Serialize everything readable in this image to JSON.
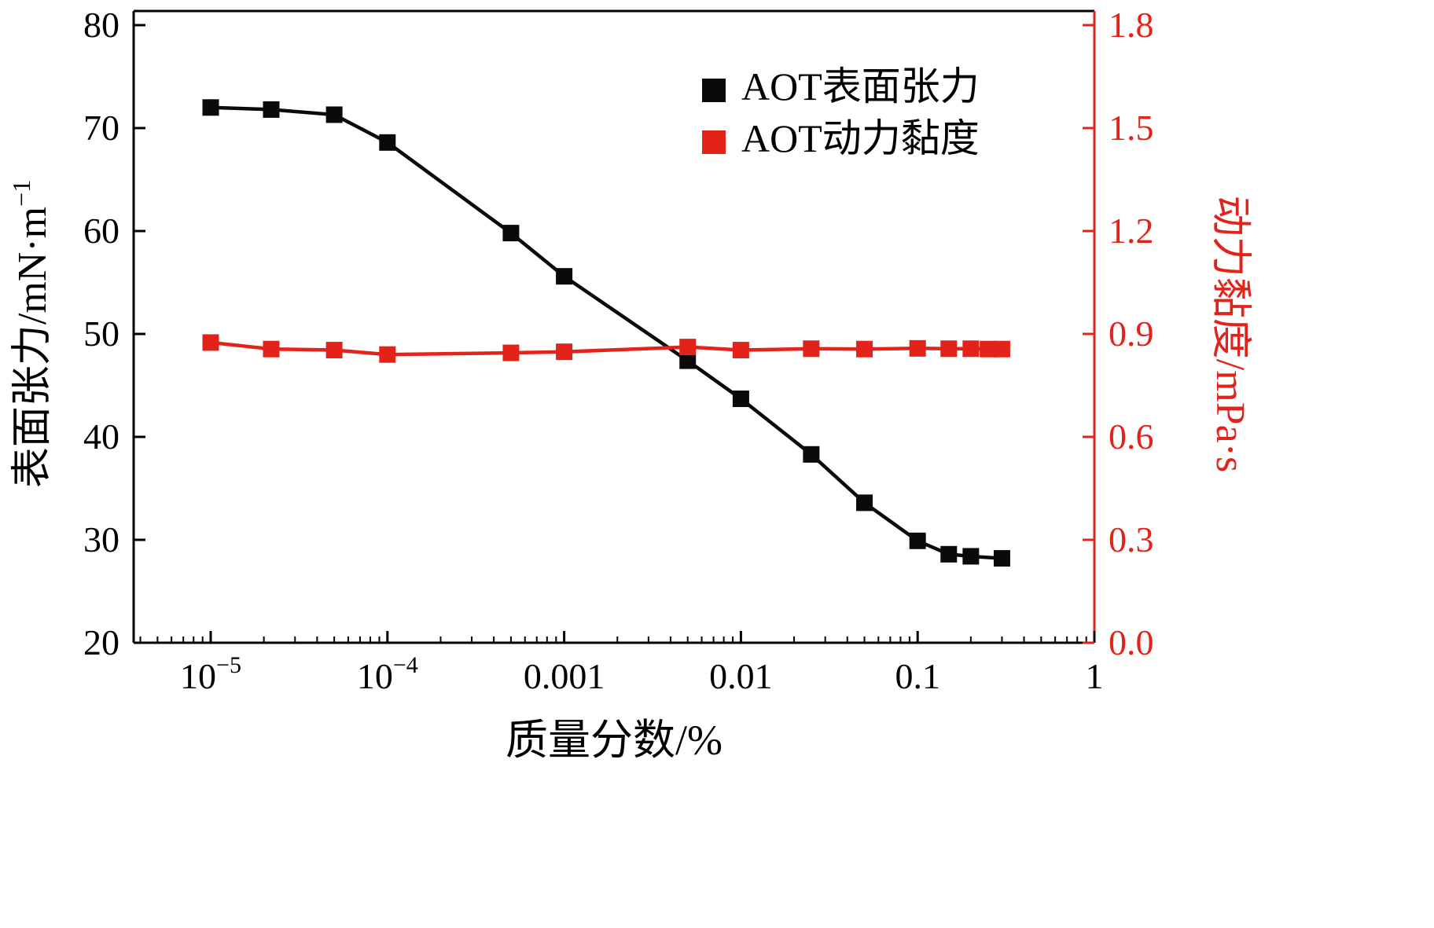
{
  "chart_data": {
    "type": "line",
    "title": "",
    "background": "#ffffff",
    "x_axis": {
      "label": "质量分数/%",
      "scale": "log",
      "ticks": [
        {
          "v": 1e-05,
          "base": "10",
          "exp": "−5"
        },
        {
          "v": 0.0001,
          "base": "10",
          "exp": "−4"
        },
        {
          "v": 0.001,
          "label": "0.001"
        },
        {
          "v": 0.01,
          "label": "0.01"
        },
        {
          "v": 0.1,
          "label": "0.1"
        },
        {
          "v": 1,
          "label": "1"
        }
      ]
    },
    "left_axis": {
      "label_pre": "表面张力/mN·m",
      "label_sup": "−1",
      "min": 20,
      "max": 80,
      "ticks": [
        {
          "v": 20,
          "label": "20"
        },
        {
          "v": 30,
          "label": "30"
        },
        {
          "v": 40,
          "label": "40"
        },
        {
          "v": 50,
          "label": "50"
        },
        {
          "v": 60,
          "label": "60"
        },
        {
          "v": 70,
          "label": "70"
        },
        {
          "v": 80,
          "label": "80"
        }
      ],
      "color": "#000000"
    },
    "right_axis": {
      "label": "动力黏度/mPa·s",
      "min": 0,
      "max": 1.8,
      "ticks": [
        {
          "v": 0.0,
          "label": "0.0"
        },
        {
          "v": 0.3,
          "label": "0.3"
        },
        {
          "v": 0.6,
          "label": "0.6"
        },
        {
          "v": 0.9,
          "label": "0.9"
        },
        {
          "v": 1.2,
          "label": "1.2"
        },
        {
          "v": 1.5,
          "label": "1.5"
        },
        {
          "v": 1.8,
          "label": "1.8"
        }
      ],
      "color": "#e3231a"
    },
    "series": [
      {
        "name": "AOT表面张力",
        "axis": "left",
        "color": "#0a0a0a",
        "marker": "square",
        "x": [
          1e-05,
          2.2e-05,
          5e-05,
          0.0001,
          0.0005,
          0.001,
          0.005,
          0.01,
          0.025,
          0.05,
          0.1,
          0.15,
          0.2,
          0.3
        ],
        "y": [
          72.0,
          71.8,
          71.3,
          68.6,
          59.8,
          55.6,
          47.4,
          43.7,
          38.3,
          33.6,
          29.9,
          28.6,
          28.4,
          28.2
        ]
      },
      {
        "name": "AOT动力黏度",
        "axis": "right",
        "color": "#e3231a",
        "marker": "square",
        "x": [
          1e-05,
          2.2e-05,
          5e-05,
          0.0001,
          0.0005,
          0.001,
          0.005,
          0.01,
          0.025,
          0.05,
          0.1,
          0.15,
          0.2,
          0.25,
          0.3
        ],
        "y": [
          0.875,
          0.856,
          0.853,
          0.84,
          0.845,
          0.848,
          0.862,
          0.853,
          0.857,
          0.856,
          0.858,
          0.857,
          0.857,
          0.856,
          0.856
        ]
      }
    ],
    "legend": {
      "position": "top-right-inside",
      "items": [
        {
          "label": "AOT表面张力",
          "color": "#0a0a0a"
        },
        {
          "label": "AOT动力黏度",
          "color": "#e3231a"
        }
      ]
    },
    "grid": false
  }
}
